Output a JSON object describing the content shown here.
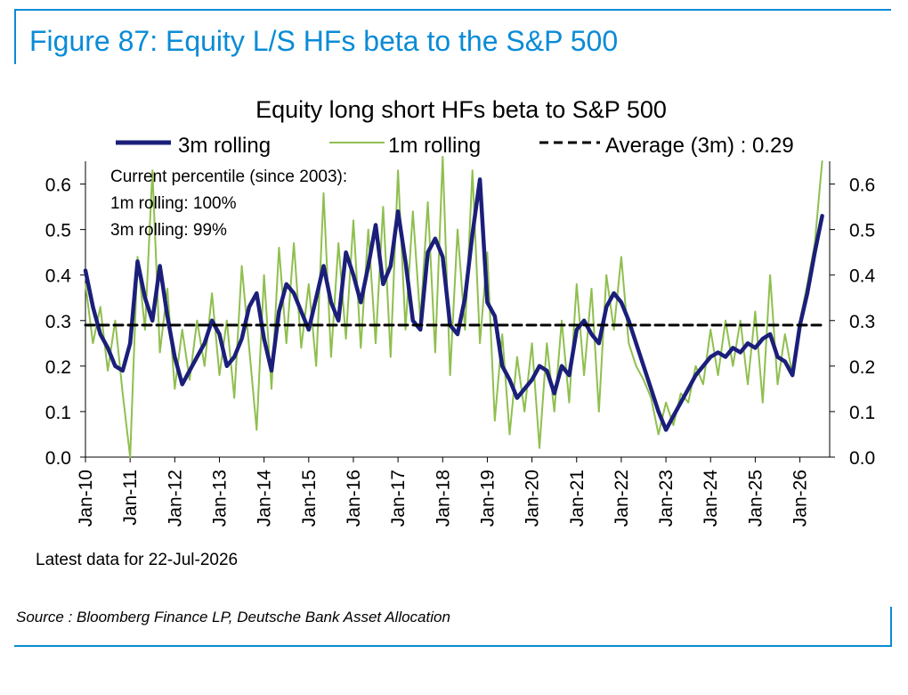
{
  "figure_title": "Figure 87: Equity L/S HFs beta to the S&P 500",
  "source": "Source : Bloomberg Finance LP, Deutsche Bank Asset Allocation",
  "chart_data": {
    "type": "line",
    "title": "Equity long short HFs beta to S&P 500",
    "xlabel": "",
    "ylabel": "",
    "ylim": [
      0,
      0.65
    ],
    "yticks": [
      "0.0",
      "0.1",
      "0.2",
      "0.3",
      "0.4",
      "0.5",
      "0.6"
    ],
    "yticks_right": [
      "0.0",
      "0.1",
      "0.2",
      "0.3",
      "0.4",
      "0.5",
      "0.6"
    ],
    "xlim": [
      "2010-01",
      "2026-09"
    ],
    "xticks": [
      "Jan-10",
      "Jan-11",
      "Jan-12",
      "Jan-13",
      "Jan-14",
      "Jan-15",
      "Jan-16",
      "Jan-17",
      "Jan-18",
      "Jan-19",
      "Jan-20",
      "Jan-21",
      "Jan-22",
      "Jan-23",
      "Jan-24",
      "Jan-25",
      "Jan-26"
    ],
    "grid": false,
    "legend_position": "top",
    "annotations": [
      "Current percentile (since 2003):",
      "1m rolling: 100%",
      "3m rolling: 99%"
    ],
    "footnote": "Latest data for 22-Jul-2026",
    "colors": {
      "three_month": "#1b1f7a",
      "one_month": "#8fbf4f",
      "average": "#000000"
    },
    "series": [
      {
        "name": "3m rolling",
        "style": "solid",
        "x": [
          "2010-01",
          "2010-03",
          "2010-05",
          "2010-07",
          "2010-09",
          "2010-11",
          "2011-01",
          "2011-03",
          "2011-05",
          "2011-07",
          "2011-09",
          "2011-11",
          "2012-01",
          "2012-03",
          "2012-05",
          "2012-07",
          "2012-09",
          "2012-11",
          "2013-01",
          "2013-03",
          "2013-05",
          "2013-07",
          "2013-09",
          "2013-11",
          "2014-01",
          "2014-03",
          "2014-05",
          "2014-07",
          "2014-09",
          "2014-11",
          "2015-01",
          "2015-03",
          "2015-05",
          "2015-07",
          "2015-09",
          "2015-11",
          "2016-01",
          "2016-03",
          "2016-05",
          "2016-07",
          "2016-09",
          "2016-11",
          "2017-01",
          "2017-03",
          "2017-05",
          "2017-07",
          "2017-09",
          "2017-11",
          "2018-01",
          "2018-03",
          "2018-05",
          "2018-07",
          "2018-09",
          "2018-11",
          "2019-01",
          "2019-03",
          "2019-05",
          "2019-07",
          "2019-09",
          "2019-11",
          "2020-01",
          "2020-03",
          "2020-05",
          "2020-07",
          "2020-09",
          "2020-11",
          "2021-01",
          "2021-03",
          "2021-05",
          "2021-07",
          "2021-09",
          "2021-11",
          "2022-01",
          "2022-03",
          "2022-05",
          "2022-07",
          "2022-09",
          "2022-11",
          "2023-01",
          "2023-03",
          "2023-05",
          "2023-07",
          "2023-09",
          "2023-11",
          "2024-01",
          "2024-03",
          "2024-05",
          "2024-07",
          "2024-09",
          "2024-11",
          "2025-01",
          "2025-03",
          "2025-05",
          "2025-07",
          "2025-09",
          "2025-11",
          "2026-01",
          "2026-03",
          "2026-05",
          "2026-07"
        ],
        "values": [
          0.41,
          0.33,
          0.27,
          0.24,
          0.2,
          0.19,
          0.25,
          0.43,
          0.35,
          0.3,
          0.42,
          0.31,
          0.22,
          0.16,
          0.19,
          0.22,
          0.25,
          0.3,
          0.27,
          0.2,
          0.22,
          0.26,
          0.33,
          0.36,
          0.26,
          0.19,
          0.32,
          0.38,
          0.36,
          0.32,
          0.28,
          0.35,
          0.42,
          0.34,
          0.3,
          0.45,
          0.4,
          0.34,
          0.42,
          0.51,
          0.38,
          0.42,
          0.54,
          0.43,
          0.3,
          0.28,
          0.45,
          0.48,
          0.44,
          0.29,
          0.27,
          0.35,
          0.49,
          0.61,
          0.34,
          0.31,
          0.2,
          0.17,
          0.13,
          0.15,
          0.17,
          0.2,
          0.19,
          0.14,
          0.2,
          0.18,
          0.28,
          0.3,
          0.27,
          0.25,
          0.33,
          0.36,
          0.34,
          0.3,
          0.25,
          0.2,
          0.15,
          0.1,
          0.06,
          0.09,
          0.12,
          0.15,
          0.18,
          0.2,
          0.22,
          0.23,
          0.22,
          0.24,
          0.23,
          0.25,
          0.24,
          0.26,
          0.27,
          0.22,
          0.21,
          0.18,
          0.29,
          0.36,
          0.45,
          0.53
        ]
      },
      {
        "name": "1m rolling",
        "style": "solid",
        "x": [
          "2010-01",
          "2010-03",
          "2010-05",
          "2010-07",
          "2010-09",
          "2010-11",
          "2011-01",
          "2011-03",
          "2011-05",
          "2011-07",
          "2011-09",
          "2011-11",
          "2012-01",
          "2012-03",
          "2012-05",
          "2012-07",
          "2012-09",
          "2012-11",
          "2013-01",
          "2013-03",
          "2013-05",
          "2013-07",
          "2013-09",
          "2013-11",
          "2014-01",
          "2014-03",
          "2014-05",
          "2014-07",
          "2014-09",
          "2014-11",
          "2015-01",
          "2015-03",
          "2015-05",
          "2015-07",
          "2015-09",
          "2015-11",
          "2016-01",
          "2016-03",
          "2016-05",
          "2016-07",
          "2016-09",
          "2016-11",
          "2017-01",
          "2017-03",
          "2017-05",
          "2017-07",
          "2017-09",
          "2017-11",
          "2018-01",
          "2018-03",
          "2018-05",
          "2018-07",
          "2018-09",
          "2018-11",
          "2019-01",
          "2019-03",
          "2019-05",
          "2019-07",
          "2019-09",
          "2019-11",
          "2020-01",
          "2020-03",
          "2020-05",
          "2020-07",
          "2020-09",
          "2020-11",
          "2021-01",
          "2021-03",
          "2021-05",
          "2021-07",
          "2021-09",
          "2021-11",
          "2022-01",
          "2022-03",
          "2022-05",
          "2022-07",
          "2022-09",
          "2022-11",
          "2023-01",
          "2023-03",
          "2023-05",
          "2023-07",
          "2023-09",
          "2023-11",
          "2024-01",
          "2024-03",
          "2024-05",
          "2024-07",
          "2024-09",
          "2024-11",
          "2025-01",
          "2025-03",
          "2025-05",
          "2025-07",
          "2025-09",
          "2025-11",
          "2026-01",
          "2026-03",
          "2026-05",
          "2026-07"
        ],
        "values": [
          0.38,
          0.25,
          0.33,
          0.19,
          0.3,
          0.14,
          0.0,
          0.44,
          0.28,
          0.63,
          0.23,
          0.37,
          0.15,
          0.28,
          0.17,
          0.3,
          0.2,
          0.36,
          0.18,
          0.3,
          0.13,
          0.42,
          0.24,
          0.06,
          0.4,
          0.15,
          0.46,
          0.25,
          0.47,
          0.24,
          0.38,
          0.2,
          0.58,
          0.22,
          0.47,
          0.26,
          0.52,
          0.24,
          0.5,
          0.25,
          0.55,
          0.22,
          0.63,
          0.28,
          0.54,
          0.3,
          0.56,
          0.23,
          0.66,
          0.18,
          0.5,
          0.28,
          0.63,
          0.25,
          0.45,
          0.08,
          0.27,
          0.05,
          0.22,
          0.1,
          0.25,
          0.02,
          0.25,
          0.1,
          0.3,
          0.12,
          0.38,
          0.18,
          0.37,
          0.1,
          0.4,
          0.28,
          0.44,
          0.25,
          0.2,
          0.17,
          0.13,
          0.05,
          0.12,
          0.07,
          0.14,
          0.12,
          0.2,
          0.16,
          0.28,
          0.18,
          0.3,
          0.2,
          0.3,
          0.16,
          0.32,
          0.12,
          0.4,
          0.16,
          0.27,
          0.18,
          0.3,
          0.38,
          0.47,
          0.65
        ]
      },
      {
        "name": "Average (3m) : 0.29",
        "style": "dashed",
        "x": [
          "2010-01",
          "2026-07"
        ],
        "values": [
          0.29,
          0.29
        ]
      }
    ]
  }
}
